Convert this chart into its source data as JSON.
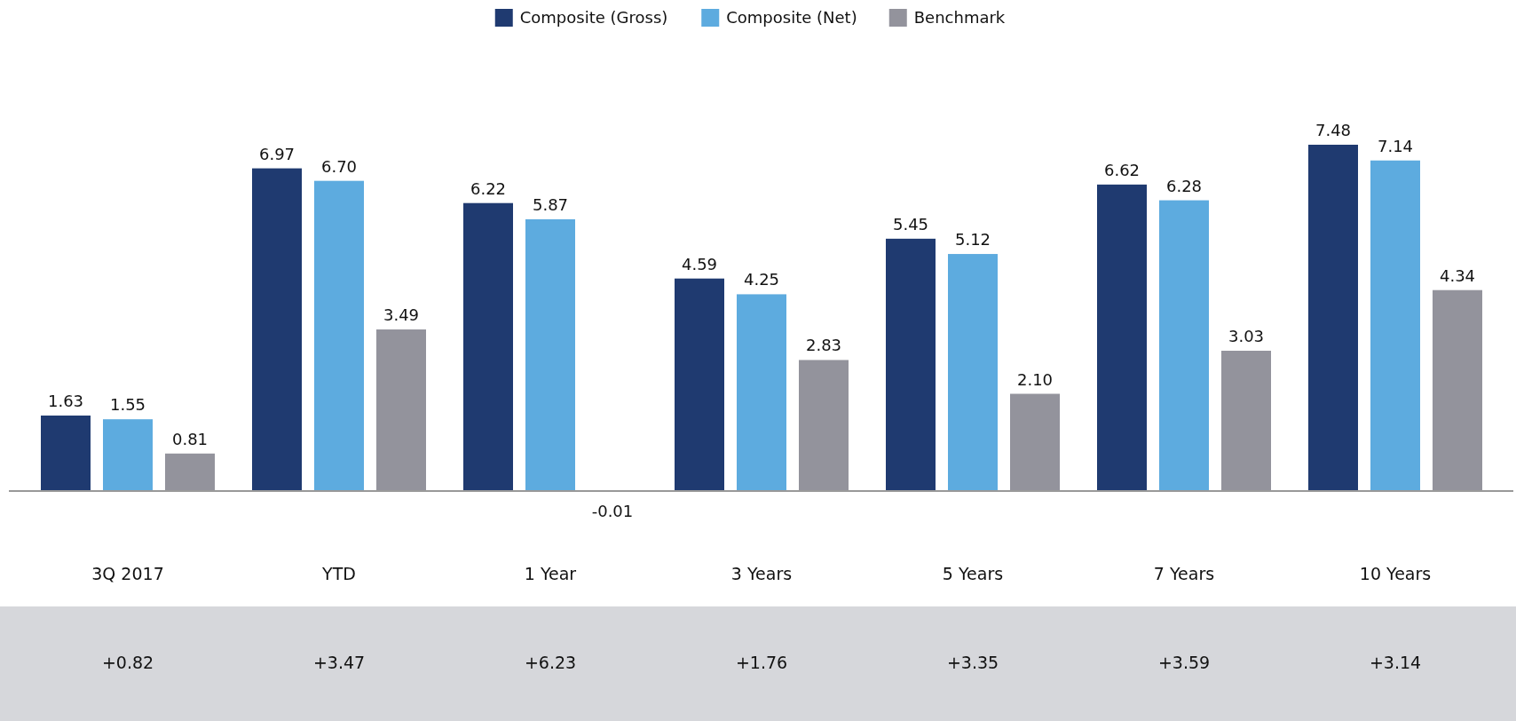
{
  "chart_data": {
    "type": "bar",
    "categories": [
      "3Q 2017",
      "YTD",
      "1 Year",
      "3 Years",
      "5 Years",
      "7 Years",
      "10 Years"
    ],
    "series": [
      {
        "name": "Composite (Gross)",
        "color": "#1f3a70",
        "values": [
          1.63,
          6.97,
          6.22,
          4.59,
          5.45,
          6.62,
          7.48
        ],
        "value_labels": [
          "1.63",
          "6.97",
          "6.22",
          "4.59",
          "5.45",
          "6.62",
          "7.48"
        ]
      },
      {
        "name": "Composite (Net)",
        "color": "#5dabdf",
        "values": [
          1.55,
          6.7,
          5.87,
          4.25,
          5.12,
          6.28,
          7.14
        ],
        "value_labels": [
          "1.55",
          "6.70",
          "5.87",
          "4.25",
          "5.12",
          "6.28",
          "7.14"
        ]
      },
      {
        "name": "Benchmark",
        "color": "#93939c",
        "values": [
          0.81,
          3.49,
          -0.01,
          2.83,
          2.1,
          3.03,
          4.34
        ],
        "value_labels": [
          "0.81",
          "3.49",
          "-0.01",
          "2.83",
          "2.10",
          "3.03",
          "4.34"
        ]
      }
    ],
    "legend": "top",
    "annotations": [
      "+0.82",
      "+3.47",
      "+6.23",
      "+1.76",
      "+3.35",
      "+3.59",
      "+3.14"
    ]
  }
}
